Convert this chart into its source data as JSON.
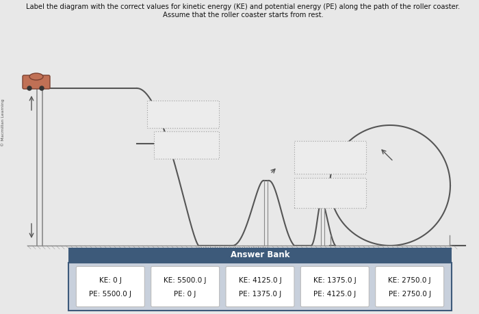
{
  "title_line1": "Label the diagram with the correct values for kinetic energy (KE) and potential energy (PE) along the path of the roller coaster.",
  "title_line2": "Assume that the roller coaster starts from rest.",
  "side_label": "© Macmillan Learning",
  "answer_bank_title": "Answer Bank",
  "answer_bank_header_color": "#3d5a7a",
  "answer_bank_bg": "#c8d0dc",
  "answer_bank_border": "#3d5a7a",
  "answer_cards": [
    {
      "ke": "KE: 0 J",
      "pe": "PE: 5500.0 J"
    },
    {
      "ke": "KE: 5500.0 J",
      "pe": "PE: 0 J"
    },
    {
      "ke": "KE: 4125.0 J",
      "pe": "PE: 1375.0 J"
    },
    {
      "ke": "KE: 1375.0 J",
      "pe": "PE: 4125.0 J"
    },
    {
      "ke": "KE: 2750.0 J",
      "pe": "PE: 2750.0 J"
    }
  ],
  "bg_color": "#e8e8e8",
  "track_color": "#555555",
  "support_color": "#888888",
  "dashed_box_color": "#888888",
  "car_body_color": "#c07055",
  "car_edge_color": "#7a4030"
}
